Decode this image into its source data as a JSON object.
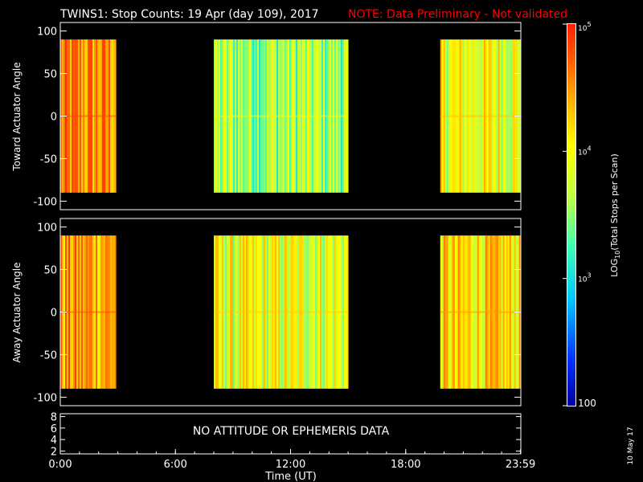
{
  "header": {
    "title": "TWINS1: Stop Counts: 19 Apr (day 109), 2017",
    "note": "NOTE: Data Preliminary - Not validated"
  },
  "colors": {
    "background": "#000000",
    "axes": "#ffffff",
    "note": "#ff0000",
    "colormap": [
      "#0000a0",
      "#0030ff",
      "#00c8ff",
      "#40ffb0",
      "#c0ff40",
      "#ffff00",
      "#ffb000",
      "#ff6000",
      "#ff2000"
    ]
  },
  "chart_data": [
    {
      "type": "heatmap",
      "ylabel": "Toward Actuator Angle",
      "xlim": [
        0,
        24
      ],
      "ylim": [
        -110,
        110
      ],
      "yticks": [
        100,
        50,
        0,
        -50,
        -100
      ],
      "ytick_labels": [
        "100",
        "50",
        "0",
        "-50",
        "-100"
      ],
      "data_ylim": [
        -90,
        90
      ],
      "blocks": [
        {
          "start": 0.0,
          "end": 2.9,
          "level": 0.8
        },
        {
          "start": 8.0,
          "end": 15.0,
          "level": 0.48
        },
        {
          "start": 19.8,
          "end": 24.0,
          "level": 0.6
        }
      ]
    },
    {
      "type": "heatmap",
      "ylabel": "Away Actuator Angle",
      "xlim": [
        0,
        24
      ],
      "ylim": [
        -110,
        110
      ],
      "yticks": [
        100,
        50,
        0,
        -50,
        -100
      ],
      "ytick_labels": [
        "100",
        "50",
        "0",
        "-50",
        "-100"
      ],
      "data_ylim": [
        -90,
        90
      ],
      "blocks": [
        {
          "start": 0.0,
          "end": 2.9,
          "level": 0.78
        },
        {
          "start": 8.0,
          "end": 15.0,
          "level": 0.58
        },
        {
          "start": 19.8,
          "end": 24.0,
          "level": 0.66
        }
      ]
    },
    {
      "type": "line",
      "xlim": [
        0,
        24
      ],
      "ylim": [
        1.5,
        8.5
      ],
      "yticks": [
        8,
        6,
        4,
        2
      ],
      "ytick_labels": [
        "8",
        "6",
        "4",
        "2"
      ],
      "message": "NO ATTITUDE OR EPHEMERIS DATA",
      "xticks": [
        0,
        6,
        12,
        18,
        23.983
      ],
      "xtick_labels": [
        "0:00",
        "6:00",
        "12:00",
        "18:00",
        "23:59"
      ],
      "xlabel": "Time (UT)"
    }
  ],
  "colorbar": {
    "label_prefix": "LOG",
    "label_sub": "10",
    "label_suffix": "(Total Stops per Scan)",
    "tick_labels": [
      "10",
      "10",
      "10",
      "100"
    ],
    "tick_exponents": [
      "5",
      "4",
      "3",
      ""
    ],
    "ticks_log": [
      5,
      4,
      3,
      2
    ],
    "range_log": [
      2,
      5
    ]
  },
  "footer": {
    "date_stamp": "10 May 17"
  }
}
